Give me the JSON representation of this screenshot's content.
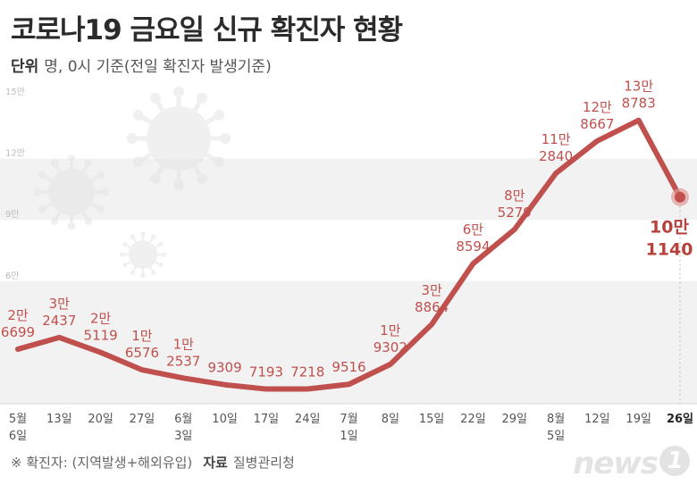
{
  "title": "코로나19 금요일 신규 확진자 현황",
  "unit_label": "단위",
  "unit_text": "명, 0시 기준(전일 확진자 발생기준)",
  "footnote": "※ 확진자: (지역발생+해외유입)",
  "source_label": "자료",
  "source": "질병관리청",
  "logo_text": "news",
  "logo_mark": "1",
  "colors": {
    "line": "#c0504d",
    "band": "#f2f2f2",
    "label": "#c0504d"
  },
  "chart_data": {
    "type": "line",
    "title": "코로나19 금요일 신규 확진자 현황",
    "ylim": [
      0,
      150000
    ],
    "yticks": [
      {
        "value": 30000,
        "label": ""
      },
      {
        "value": 60000,
        "label": "6만"
      },
      {
        "value": 90000,
        "label": "9만"
      },
      {
        "value": 120000,
        "label": "12만"
      },
      {
        "value": 150000,
        "label": "15만"
      }
    ],
    "categories": [
      [
        "5월",
        "6일"
      ],
      [
        "13일"
      ],
      [
        "20일"
      ],
      [
        "27일"
      ],
      [
        "6월",
        "3일"
      ],
      [
        "10일"
      ],
      [
        "17일"
      ],
      [
        "24일"
      ],
      [
        "7월",
        "1일"
      ],
      [
        "8일"
      ],
      [
        "15일"
      ],
      [
        "22일"
      ],
      [
        "29일"
      ],
      [
        "8월",
        "5일"
      ],
      [
        "12일"
      ],
      [
        "19일"
      ],
      [
        "26일"
      ]
    ],
    "values": [
      26699,
      32437,
      25119,
      16576,
      12537,
      9309,
      7193,
      7218,
      9516,
      19302,
      38864,
      68594,
      85279,
      112840,
      128667,
      138783,
      101140
    ],
    "labels": [
      [
        "2만",
        "6699"
      ],
      [
        "3만",
        "2437"
      ],
      [
        "2만",
        "5119"
      ],
      [
        "1만",
        "6576"
      ],
      [
        "1만",
        "2537"
      ],
      [
        "9309"
      ],
      [
        "7193"
      ],
      [
        "7218"
      ],
      [
        "9516"
      ],
      [
        "1만",
        "9302"
      ],
      [
        "3만",
        "8864"
      ],
      [
        "6만",
        "8594"
      ],
      [
        "8만",
        "5279"
      ],
      [
        "11만",
        "2840"
      ],
      [
        "12만",
        "8667"
      ],
      [
        "13만",
        "8783"
      ],
      [
        "10만",
        "1140"
      ]
    ],
    "highlight_index": 16,
    "grid": "alternating-bands"
  }
}
